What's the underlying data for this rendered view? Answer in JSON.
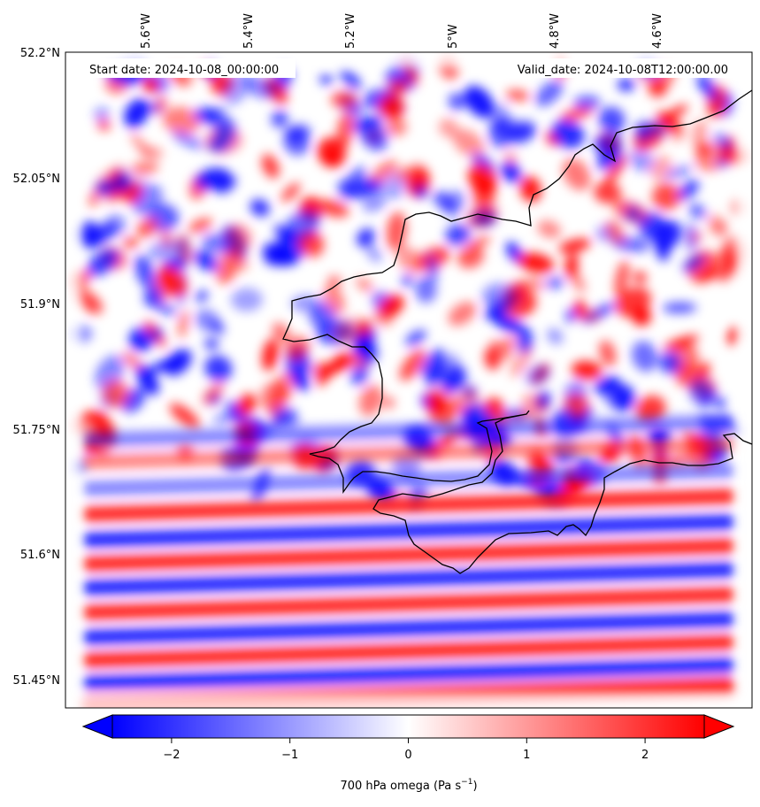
{
  "map": {
    "start_label": "Start date: 2024-10-08_00:00:00",
    "valid_label": "Valid_date: 2024-10-08T12:00:00.00",
    "lon_labels": [
      "5.6°W",
      "5.4°W",
      "5.2°W",
      "5°W",
      "4.8°W",
      "4.6°W"
    ],
    "lat_labels": [
      "52.2°N",
      "52.05°N",
      "51.9°N",
      "51.75°N",
      "51.6°N",
      "51.45°N"
    ],
    "field_colors": {
      "negative": "#0000ff",
      "zero": "#ffffff",
      "positive": "#ff0000"
    }
  },
  "colorbar": {
    "ticks": [
      "−2",
      "−1",
      "0",
      "1",
      "2"
    ],
    "tick_values": [
      -2,
      -1,
      0,
      1,
      2
    ],
    "range": [
      -2.5,
      2.5
    ],
    "label_main": "700 hPa omega (Pa s",
    "label_sup": "−1",
    "label_tail": ")"
  }
}
